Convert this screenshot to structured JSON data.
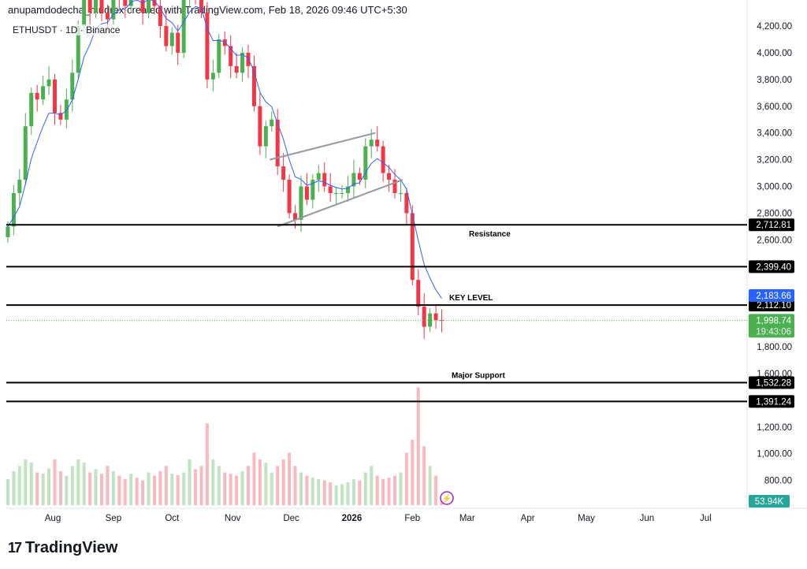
{
  "header": {
    "credit": "anupamdodecha_mudrex created with TradingView.com, Feb 18, 2026 09:46 UTC+5:30",
    "symbol": "ETHUSDT · 1D · Binance"
  },
  "logo": "TradingView",
  "chart_data": {
    "type": "candlestick",
    "ylim": [
      700,
      4300
    ],
    "yticks": [
      800,
      1000,
      1200,
      1600,
      1800,
      2600,
      2800,
      3000,
      3200,
      3400,
      3600,
      3800,
      4000,
      4200
    ],
    "xticks": [
      {
        "label": "Aug",
        "date": "2025-08-01"
      },
      {
        "label": "Sep",
        "date": "2025-09-01"
      },
      {
        "label": "Oct",
        "date": "2025-10-01"
      },
      {
        "label": "Nov",
        "date": "2025-11-01"
      },
      {
        "label": "Dec",
        "date": "2025-12-01"
      },
      {
        "label": "2026",
        "date": "2026-01-01"
      },
      {
        "label": "Feb",
        "date": "2026-02-01"
      },
      {
        "label": "Mar",
        "date": "2026-03-01"
      },
      {
        "label": "Apr",
        "date": "2026-04-01"
      },
      {
        "label": "May",
        "date": "2026-05-01"
      },
      {
        "label": "Jun",
        "date": "2026-06-01"
      },
      {
        "label": "Jul",
        "date": "2026-07-01"
      }
    ],
    "start_date": "2025-07-09",
    "interval_days": 3,
    "closes": [
      2700,
      2950,
      3050,
      3450,
      3700,
      3650,
      3750,
      3800,
      3550,
      3500,
      3650,
      3850,
      4200,
      4400,
      4300,
      4500,
      4300,
      4250,
      4450,
      4400,
      4350,
      4500,
      4450,
      4300,
      4480,
      4350,
      4200,
      4050,
      4150,
      4000,
      4400,
      4500,
      4450,
      4300,
      3800,
      3850,
      4100,
      4050,
      3900,
      3850,
      4000,
      3900,
      3600,
      3300,
      3450,
      3500,
      3150,
      3050,
      2800,
      2750,
      3000,
      2900,
      3050,
      3100,
      3000,
      2950,
      2950,
      2950,
      3000,
      3100,
      3050,
      3300,
      3350,
      3300,
      3100,
      3050,
      2950,
      2950,
      2800,
      2300,
      2100,
      1950,
      2050,
      2000,
      1998.74
    ],
    "volumes_k": [
      400,
      520,
      600,
      700,
      650,
      500,
      480,
      560,
      700,
      520,
      450,
      600,
      700,
      650,
      500,
      550,
      480,
      600,
      520,
      450,
      400,
      480,
      420,
      380,
      500,
      450,
      520,
      600,
      480,
      460,
      500,
      700,
      550,
      600,
      1250,
      700,
      600,
      500,
      480,
      450,
      520,
      600,
      800,
      700,
      650,
      500,
      600,
      700,
      800,
      600,
      500,
      450,
      420,
      400,
      380,
      350,
      300,
      320,
      350,
      400,
      380,
      500,
      600,
      450,
      400,
      420,
      450,
      500,
      800,
      1000,
      1800,
      900,
      600,
      450,
      53.94
    ],
    "volume_label": "53.94K",
    "ma_color": "#2962ff",
    "horizontal_levels": [
      {
        "price": 2712.81,
        "label": "2,712.81",
        "note": "Resistance"
      },
      {
        "price": 2399.4,
        "label": "2,399.40",
        "note": ""
      },
      {
        "price": 2112.1,
        "label": "2,112.10",
        "note": "KEY LEVEL"
      },
      {
        "price": 1532.28,
        "label": "1,532.28",
        "note": "Major Support"
      },
      {
        "price": 1391.24,
        "label": "1,391.24",
        "note": ""
      }
    ],
    "ma_value": {
      "price": 2183.66,
      "label": "2,183.66"
    },
    "last_price": {
      "price": 1998.74,
      "label": "1,998.74",
      "countdown": "19:43:06"
    },
    "channel": [
      {
        "from": [
          "2025-11-20",
          3200
        ],
        "to": [
          "2026-01-13",
          3400
        ]
      },
      {
        "from": [
          "2025-11-24",
          2700
        ],
        "to": [
          "2026-01-27",
          3050
        ]
      }
    ],
    "up_color": "#4caf50",
    "down_color": "#f23645"
  }
}
